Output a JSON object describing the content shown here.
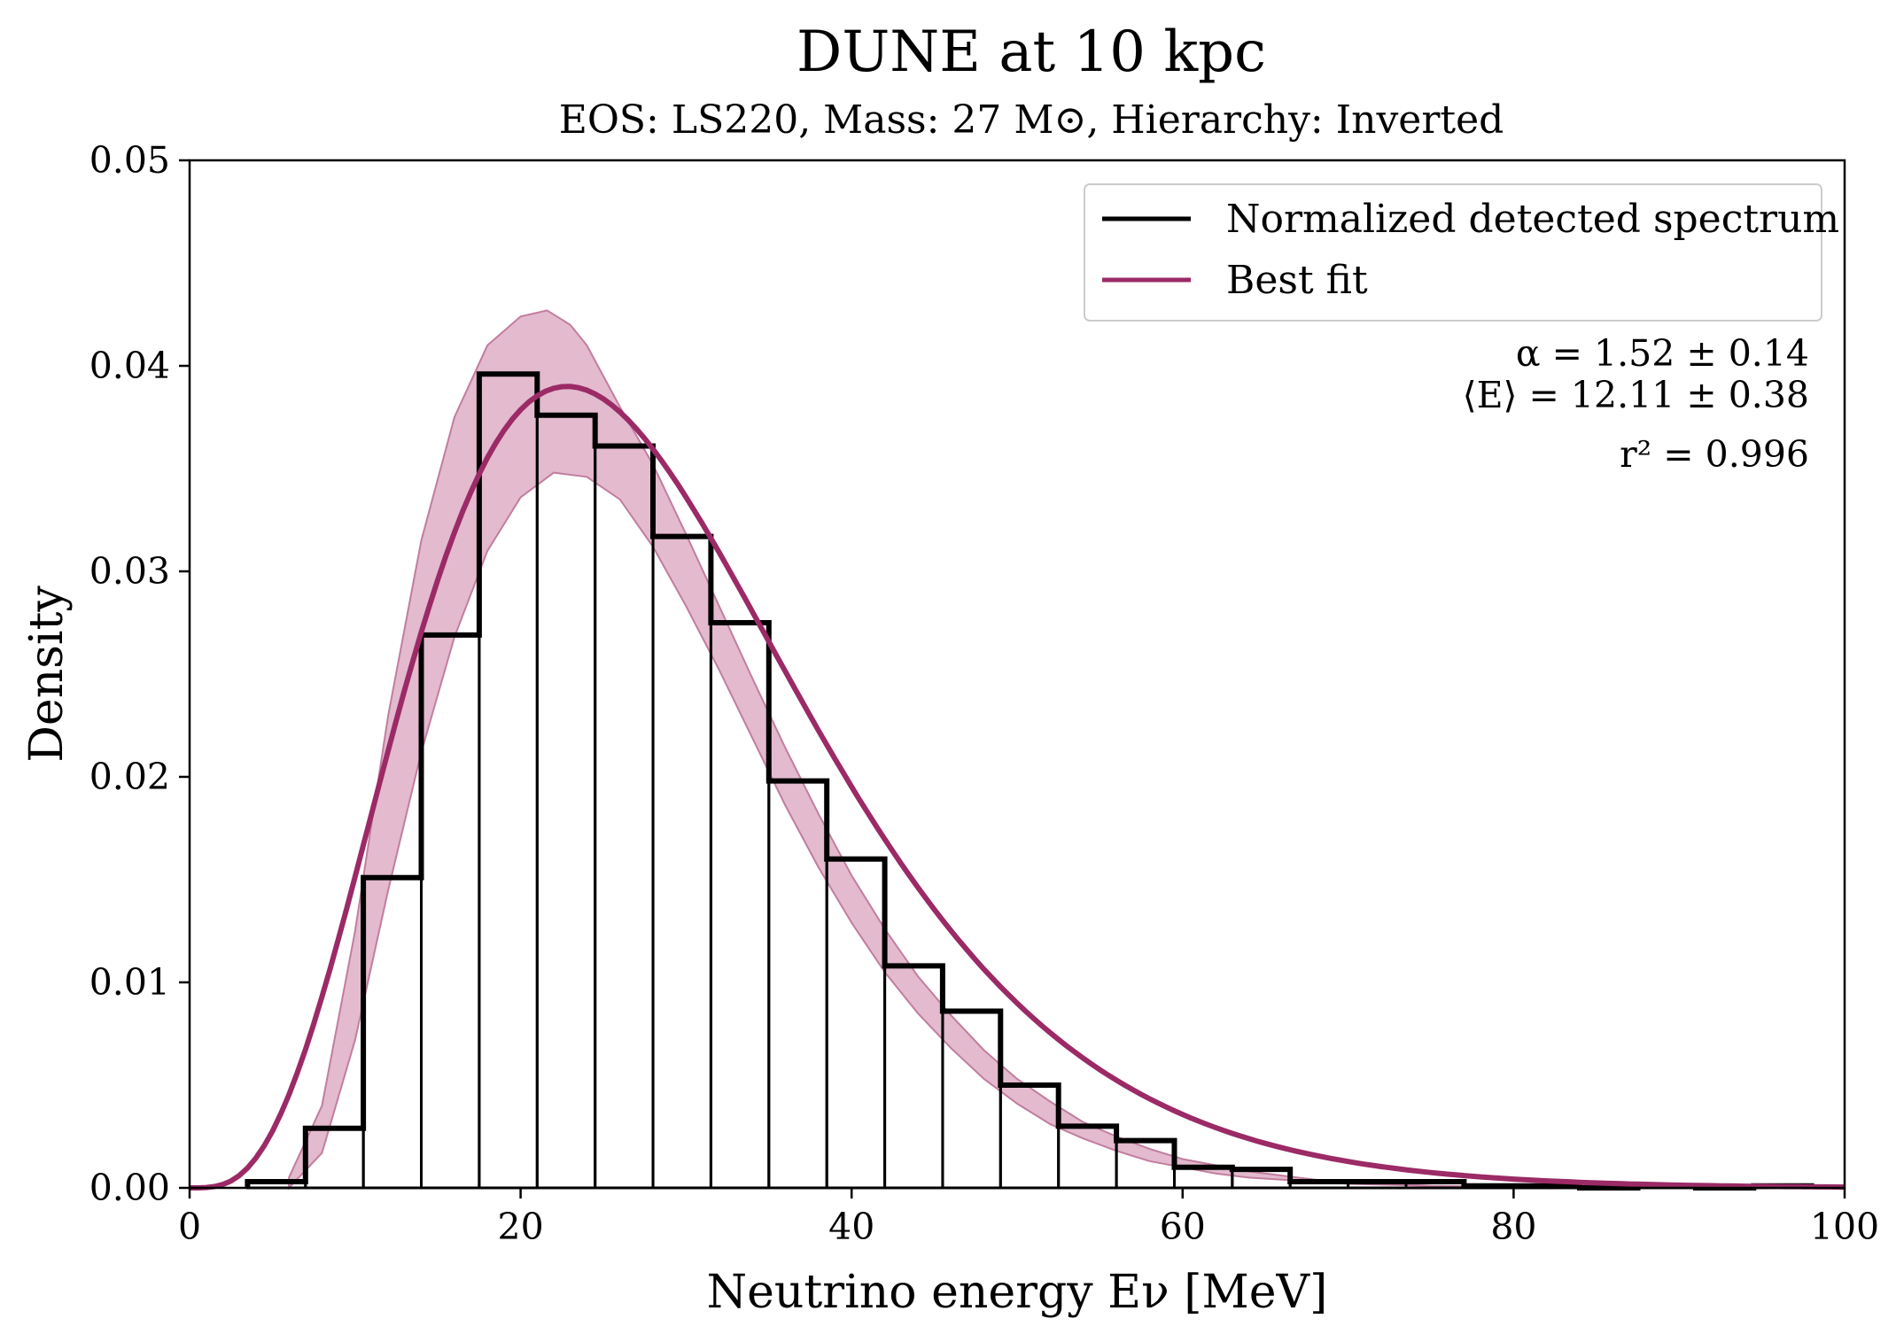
{
  "chart_data": {
    "type": "histogram",
    "title": "DUNE at 10 kpc",
    "subtitle": "EOS: LS220, Mass: 27 M⊙, Hierarchy: Inverted",
    "xlabel": "Neutrino energy Eν [MeV]",
    "ylabel": "Density",
    "xlim": [
      0,
      100
    ],
    "ylim": [
      0,
      0.05
    ],
    "xticks": [
      0,
      20,
      40,
      60,
      80,
      100
    ],
    "xtick_labels": [
      "0",
      "20",
      "40",
      "60",
      "80",
      "100"
    ],
    "yticks": [
      0,
      0.01,
      0.02,
      0.03,
      0.04,
      0.05
    ],
    "ytick_labels": [
      "0.00",
      "0.01",
      "0.02",
      "0.03",
      "0.04",
      "0.05"
    ],
    "grid": false,
    "legend_position": "top-right",
    "legend": [
      {
        "label": "Normalized detected spectrum",
        "color": "#000000"
      },
      {
        "label": "Best fit",
        "color": "#9b2a66"
      }
    ],
    "bin_edges": [
      3.5,
      7.0,
      10.5,
      14.0,
      17.5,
      21.0,
      24.5,
      28.0,
      31.5,
      35.0,
      38.5,
      42.0,
      45.5,
      49.0,
      52.5,
      56.0,
      59.5,
      63.0,
      66.5,
      70.0,
      73.5,
      77.0,
      80.5,
      84.0,
      87.5,
      91.0,
      94.5,
      98.0
    ],
    "densities": [
      0.0003,
      0.0029,
      0.0151,
      0.0269,
      0.0396,
      0.0376,
      0.0361,
      0.0317,
      0.0275,
      0.0198,
      0.016,
      0.0108,
      0.0086,
      0.005,
      0.003,
      0.0023,
      0.001,
      0.0009,
      0.0003,
      0.0003,
      0.0003,
      0.0001,
      0.0001,
      0.0,
      0.0001,
      0.0,
      0.0001
    ],
    "fit": {
      "name": "Best fit",
      "model": "alpha-fit spectrum",
      "alpha": 1.52,
      "alpha_err": 0.14,
      "mean_energy": 12.11,
      "mean_energy_err": 0.38,
      "band_low_x": [
        6,
        8,
        10,
        12,
        14,
        16,
        18,
        20,
        22,
        24,
        26,
        28,
        30,
        32,
        34,
        36,
        38,
        40,
        42,
        44,
        46,
        48,
        50,
        52,
        54,
        56,
        58,
        60,
        62,
        64,
        66,
        68,
        70,
        75,
        80,
        85,
        90,
        95,
        100
      ],
      "band_low_y": [
        0.0,
        0.0017,
        0.0072,
        0.0145,
        0.0212,
        0.0268,
        0.031,
        0.0336,
        0.0348,
        0.0346,
        0.0335,
        0.0312,
        0.0283,
        0.0252,
        0.0219,
        0.0186,
        0.0156,
        0.0129,
        0.0105,
        0.0085,
        0.0068,
        0.0053,
        0.0041,
        0.0031,
        0.0024,
        0.0018,
        0.0013,
        0.001,
        0.0007,
        0.0005,
        0.0004,
        0.0003,
        0.0002,
        0.0001,
        5e-05,
        0.0,
        0.0,
        0.0,
        0.0
      ],
      "band_high_x": [
        6,
        8,
        10,
        12,
        14,
        16,
        18,
        20,
        21.6,
        23,
        24,
        26,
        28,
        30,
        32,
        34,
        36,
        38,
        40,
        42,
        44,
        46,
        48,
        50,
        52,
        54,
        56,
        58,
        60,
        62,
        64,
        66,
        68,
        70,
        75,
        80,
        85,
        90,
        95,
        100
      ],
      "band_high_y": [
        0.0005,
        0.004,
        0.0125,
        0.023,
        0.0315,
        0.0375,
        0.041,
        0.0424,
        0.0427,
        0.042,
        0.041,
        0.038,
        0.0352,
        0.0318,
        0.0283,
        0.0248,
        0.0214,
        0.0182,
        0.0152,
        0.0126,
        0.0103,
        0.0084,
        0.0067,
        0.0053,
        0.0042,
        0.0032,
        0.0025,
        0.0019,
        0.0014,
        0.0011,
        0.0008,
        0.0006,
        0.0004,
        0.0003,
        0.0001,
        5e-05,
        2e-05,
        0.0,
        0.0,
        0.0
      ]
    },
    "annotations": {
      "alpha": "α = 1.52 ± 0.14",
      "mean_energy": "⟨E⟩ = 12.11 ± 0.38",
      "r2": "r² = 0.996"
    },
    "colors": {
      "histogram": "#000000",
      "fit_line": "#9b2a66",
      "band_fill": "#d9a3bd",
      "band_edge": "#c27d9f"
    }
  }
}
